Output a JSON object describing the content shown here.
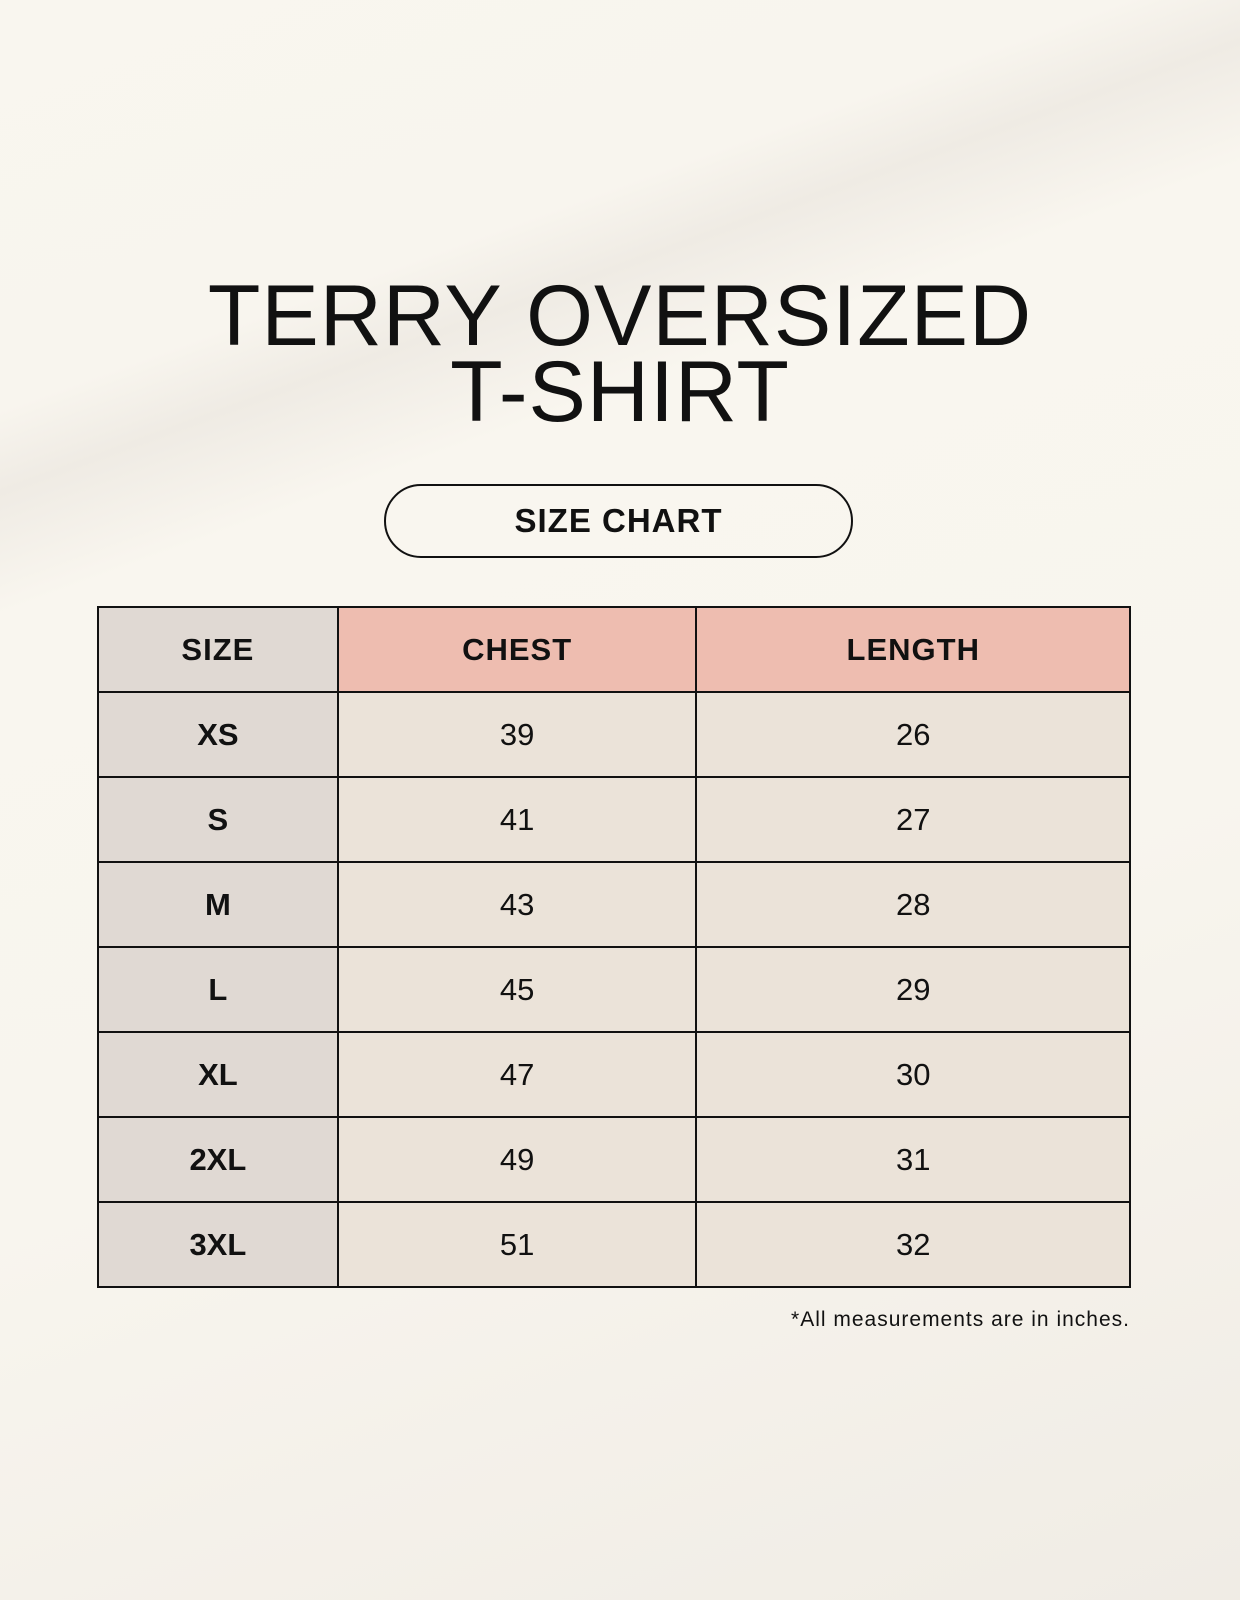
{
  "title": {
    "line1": "TERRY OVERSIZED",
    "line2": "T-SHIRT"
  },
  "subtitle_badge": "SIZE CHART",
  "table": {
    "headers": [
      "SIZE",
      "CHEST",
      "LENGTH"
    ],
    "rows": [
      [
        "XS",
        "39",
        "26"
      ],
      [
        "S",
        "41",
        "27"
      ],
      [
        "M",
        "43",
        "28"
      ],
      [
        "L",
        "45",
        "29"
      ],
      [
        "XL",
        "47",
        "30"
      ],
      [
        "2XL",
        "49",
        "31"
      ],
      [
        "3XL",
        "51",
        "32"
      ]
    ]
  },
  "footnote": "*All measurements are in inches.",
  "colors": {
    "size_column": "#e0d9d3",
    "header_accent": "#eebdb0",
    "value_cells": "#ebe3d9"
  }
}
